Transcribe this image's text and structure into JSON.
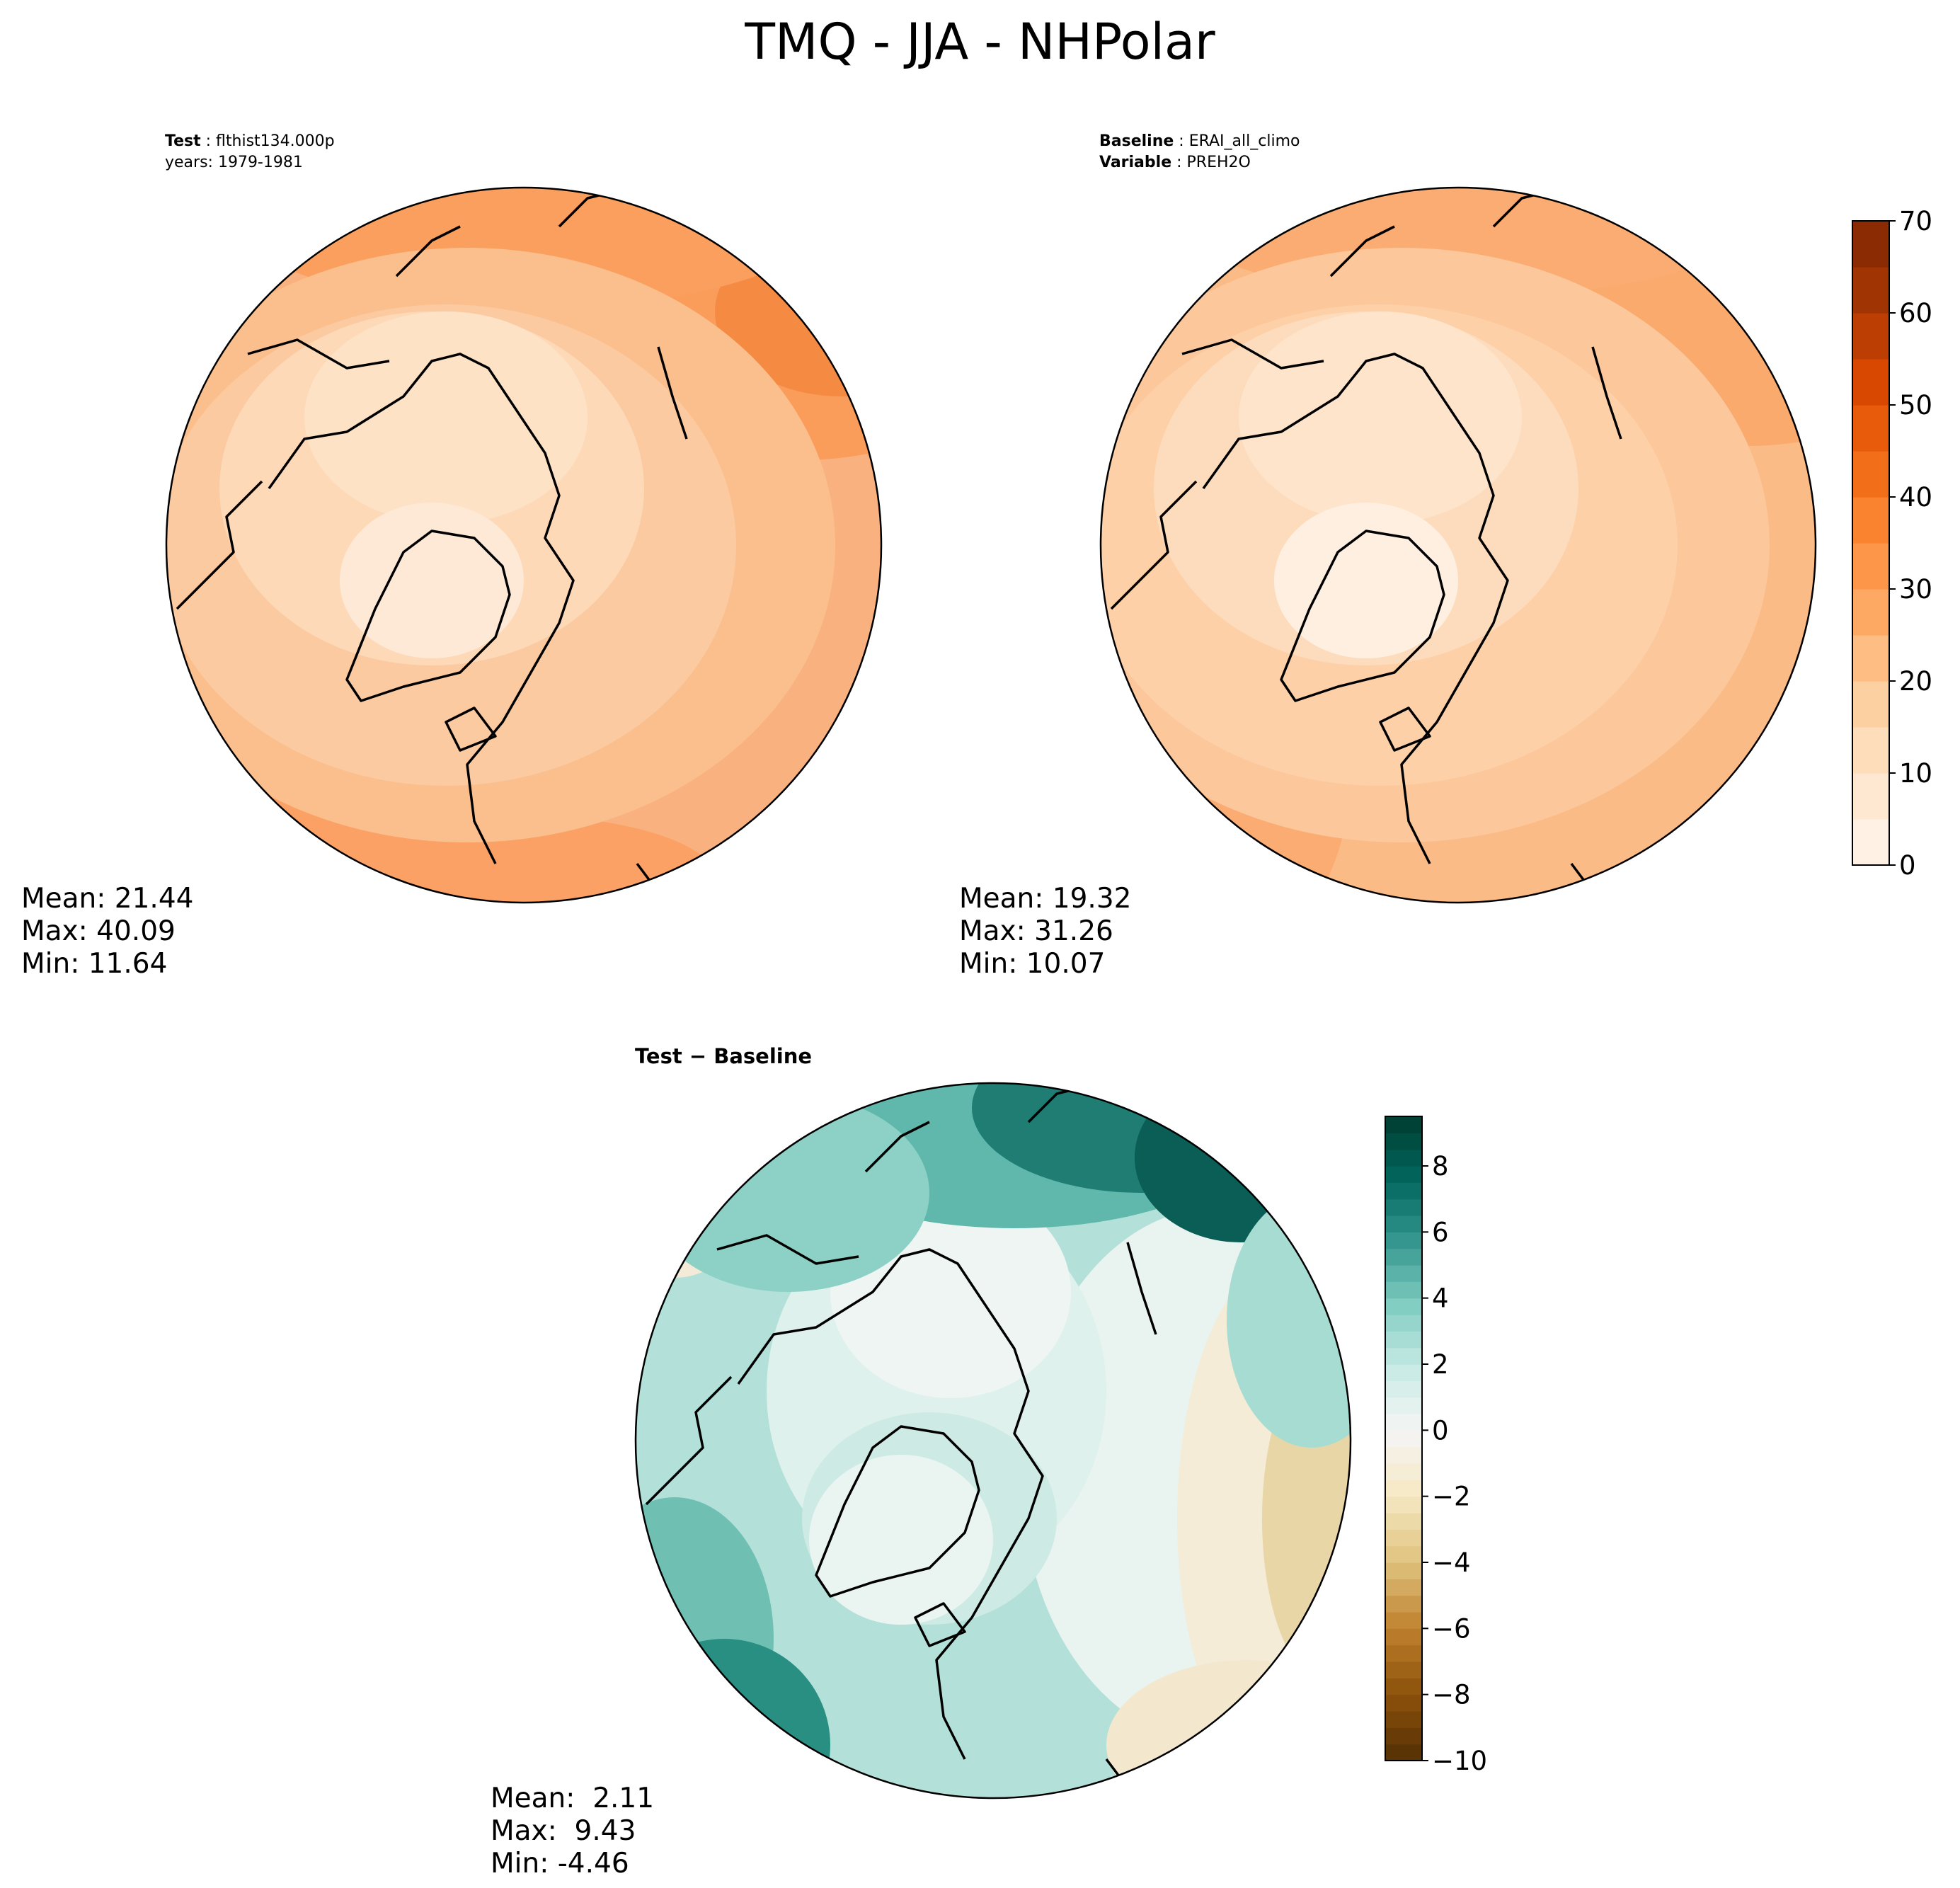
{
  "figure": {
    "title": "TMQ - JJA - NHPolar"
  },
  "panels": {
    "test": {
      "label_key": "Test",
      "label_value": "flthist134.000p",
      "line2": "years: 1979-1981",
      "mean": "Mean: 21.44",
      "max": "Max: 40.09",
      "min": "Min: 11.64"
    },
    "baseline": {
      "label_key": "Baseline",
      "label_value": "ERAI_all_climo",
      "var_key": "Variable",
      "var_value": "PREH2O",
      "mean": "Mean: 19.32",
      "max": "Max: 31.26",
      "min": "Min: 10.07"
    },
    "diff": {
      "title_a": "Test",
      "title_op": " − ",
      "title_b": "Baseline",
      "mean": "Mean:  2.11",
      "max": "Max:  9.43",
      "min": "Min: -4.46"
    }
  },
  "colors": {
    "oranges": [
      "#fff5eb",
      "#fee6ce",
      "#fdd0a2",
      "#fdae6b",
      "#fd8d3c",
      "#f16913",
      "#d94801",
      "#a63603",
      "#7f2704"
    ],
    "brbg_low": [
      "#543005",
      "#8c510a",
      "#bf812d",
      "#dfc27d",
      "#f6e8c3"
    ],
    "brbg_mid": "#f5f5f5",
    "brbg_high": [
      "#c7eae5",
      "#80cdc1",
      "#35978f",
      "#01665e",
      "#003c30"
    ]
  },
  "chart_data": [
    {
      "type": "heatmap",
      "name": "test",
      "projection": "north-polar-stereographic",
      "field": "TMQ",
      "season": "JJA",
      "stats": {
        "mean": 21.44,
        "max": 40.09,
        "min": 11.64
      },
      "colorbar": "shared-abs"
    },
    {
      "type": "heatmap",
      "name": "baseline",
      "projection": "north-polar-stereographic",
      "field": "PREH2O",
      "stats": {
        "mean": 19.32,
        "max": 31.26,
        "min": 10.07
      },
      "colorbar": {
        "range": [
          0,
          70
        ],
        "levels": 14,
        "ticks": [
          0,
          10,
          20,
          30,
          40,
          50,
          60,
          70
        ],
        "tick_labels": [
          "0",
          "10",
          "20",
          "30",
          "40",
          "50",
          "60",
          "70"
        ],
        "colormap": "Oranges"
      }
    },
    {
      "type": "heatmap",
      "name": "difference",
      "projection": "north-polar-stereographic",
      "stats": {
        "mean": 2.11,
        "max": 9.43,
        "min": -4.46
      },
      "colorbar": {
        "range": [
          -10,
          9.5
        ],
        "levels": 39,
        "ticks": [
          -10,
          -8,
          -6,
          -4,
          -2,
          0,
          2,
          4,
          6,
          8
        ],
        "tick_labels": [
          "−10",
          "−8",
          "−6",
          "−4",
          "−2",
          "0",
          "2",
          "4",
          "6",
          "8"
        ],
        "colormap": "BrBG"
      }
    }
  ]
}
